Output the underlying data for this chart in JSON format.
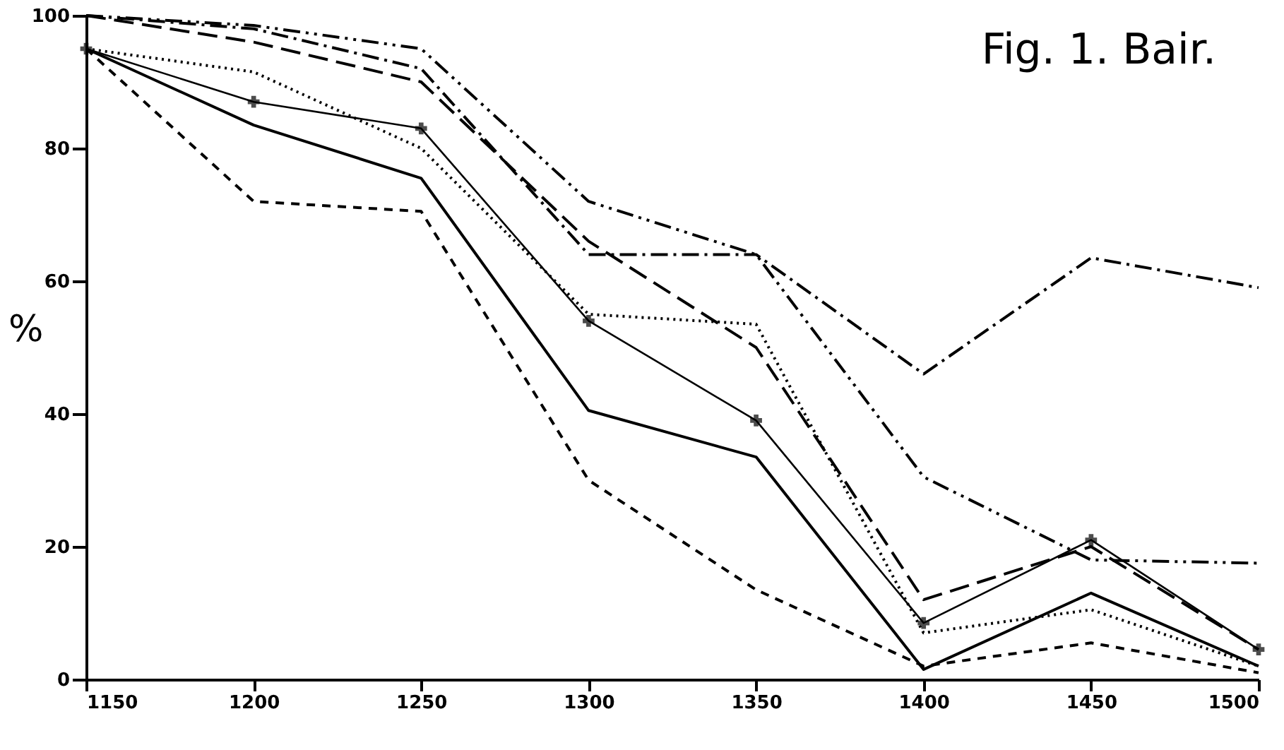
{
  "chart_data": {
    "type": "line",
    "title": "Fig. 1.  Bair.",
    "ylabel": "%",
    "x": [
      1150,
      1200,
      1250,
      1300,
      1350,
      1400,
      1450,
      1500
    ],
    "xlim": [
      1150,
      1500
    ],
    "xticks": [
      1150,
      1200,
      1250,
      1300,
      1350,
      1400,
      1450,
      1500
    ],
    "ylim": [
      0,
      100
    ],
    "yticks": [
      0,
      20,
      40,
      60,
      80,
      100
    ],
    "grid": false,
    "series": [
      {
        "color": "#000000",
        "line_style": "solid",
        "values": [
          95,
          83.5,
          75.5,
          40.5,
          33.5,
          1.5,
          13,
          2
        ]
      },
      {
        "color": "#000000",
        "line_style": "dashed",
        "values": [
          95,
          72,
          70.5,
          30,
          13.5,
          2,
          5.5,
          1
        ]
      },
      {
        "color": "#000000",
        "line_style": "dotted",
        "values": [
          95,
          91.5,
          80,
          55,
          53.5,
          7,
          10.5,
          2
        ]
      },
      {
        "color": "#000000",
        "line_style": "solid",
        "marker": "cross",
        "values": [
          95,
          87,
          83,
          54,
          39,
          8.5,
          21,
          4.5
        ]
      },
      {
        "color": "#000000",
        "line_style": "longdash",
        "values": [
          100,
          96,
          90,
          66,
          50,
          12,
          20,
          4.5
        ]
      },
      {
        "color": "#000000",
        "line_style": "dashdot",
        "values": [
          100,
          98,
          92,
          64,
          64,
          46,
          63.5,
          59
        ]
      },
      {
        "color": "#000000",
        "line_style": "dashdotdot",
        "values": [
          100,
          98.5,
          95,
          72,
          64,
          30.5,
          18,
          17.5
        ]
      }
    ]
  }
}
